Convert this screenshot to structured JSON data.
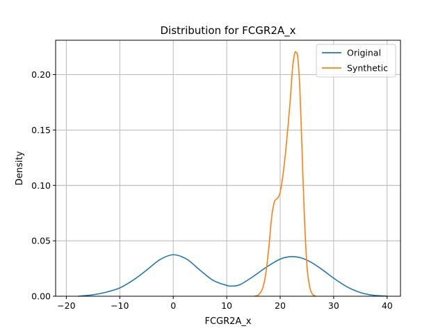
{
  "chart_data": {
    "type": "line",
    "title": "Distribution for FCGR2A_x",
    "xlabel": "FCGR2A_x",
    "ylabel": "Density",
    "xlim": [
      -22,
      42.5
    ],
    "ylim": [
      0,
      0.231
    ],
    "xticks": [
      -20,
      -10,
      0,
      10,
      20,
      30,
      40
    ],
    "xtick_labels": [
      "−20",
      "−10",
      "0",
      "10",
      "20",
      "30",
      "40"
    ],
    "yticks": [
      0.0,
      0.05,
      0.1,
      0.15,
      0.2
    ],
    "ytick_labels": [
      "0.00",
      "0.05",
      "0.10",
      "0.15",
      "0.20"
    ],
    "grid": true,
    "legend_position": "top-right",
    "series": [
      {
        "name": "Original",
        "color": "#1f77b4",
        "x": [
          -17.8,
          -15,
          -12.5,
          -10,
          -7.5,
          -5,
          -2.5,
          0,
          2.5,
          5,
          7.5,
          10,
          11,
          12.5,
          15,
          17.5,
          20,
          22,
          24,
          26,
          28,
          30,
          32.5,
          35,
          37.5,
          40
        ],
        "y": [
          0.0,
          0.0013,
          0.0037,
          0.0075,
          0.0145,
          0.0235,
          0.033,
          0.0374,
          0.0335,
          0.0235,
          0.0142,
          0.0098,
          0.0092,
          0.0105,
          0.018,
          0.0265,
          0.0335,
          0.0357,
          0.0345,
          0.03,
          0.0235,
          0.0163,
          0.0085,
          0.0033,
          0.0008,
          0.0001
        ]
      },
      {
        "name": "Synthetic",
        "color": "#ff7f0e",
        "x": [
          15.2,
          16.0,
          16.7,
          17.3,
          17.9,
          18.4,
          18.9,
          19.4,
          19.9,
          20.4,
          20.9,
          21.4,
          21.9,
          22.3,
          22.7,
          23.0,
          23.3,
          23.7,
          24.1,
          24.5,
          25.0,
          25.5,
          26.0,
          26.6
        ],
        "y": [
          0.0,
          0.0015,
          0.007,
          0.02,
          0.045,
          0.071,
          0.085,
          0.088,
          0.092,
          0.105,
          0.125,
          0.15,
          0.178,
          0.205,
          0.219,
          0.22,
          0.215,
          0.185,
          0.13,
          0.075,
          0.028,
          0.009,
          0.002,
          0.0002
        ]
      }
    ]
  }
}
